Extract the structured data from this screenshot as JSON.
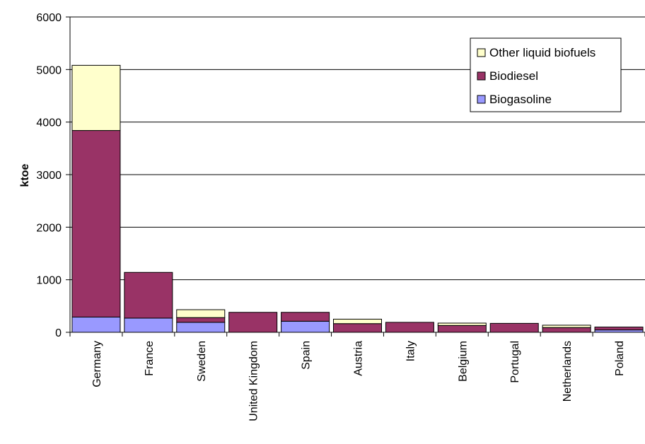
{
  "chart_data": {
    "type": "bar",
    "stacked": true,
    "categories": [
      "Germany",
      "France",
      "Sweden",
      "United Kingdom",
      "Spain",
      "Austria",
      "Italy",
      "Belgium",
      "Portugal",
      "Netherlands",
      "Poland"
    ],
    "series": [
      {
        "name": "Biogasoline",
        "color": "#9999ff",
        "values": [
          290,
          270,
          190,
          0,
          210,
          0,
          0,
          0,
          0,
          0,
          45
        ]
      },
      {
        "name": "Biodiesel",
        "color": "#993366",
        "values": [
          3550,
          870,
          90,
          380,
          170,
          165,
          190,
          130,
          170,
          90,
          55
        ]
      },
      {
        "name": "Other liquid biofuels",
        "color": "#ffffcc",
        "values": [
          1240,
          0,
          150,
          0,
          0,
          85,
          0,
          45,
          0,
          45,
          0
        ]
      }
    ],
    "title": "",
    "xlabel": "",
    "ylabel": "ktoe",
    "ylim": [
      0,
      6000
    ],
    "yticks": [
      "0",
      "1000",
      "2000",
      "3000",
      "4000",
      "5000",
      "6000"
    ],
    "grid": true,
    "legend_position": "top-right",
    "legend_order": [
      "Other liquid biofuels",
      "Biodiesel",
      "Biogasoline"
    ]
  }
}
